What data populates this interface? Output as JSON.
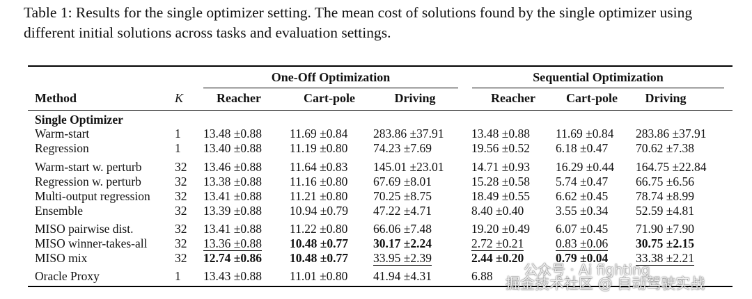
{
  "caption": "Table 1: Results for the single optimizer setting. The mean cost of solutions found by the single optimizer using different initial solutions across tasks and evaluation settings.",
  "groups": [
    "One-Off Optimization",
    "Sequential Optimization"
  ],
  "headers": [
    "Method",
    "K",
    "Reacher",
    "Cart-pole",
    "Driving",
    "Reacher",
    "Cart-pole",
    "Driving"
  ],
  "section": "Single Optimizer",
  "rows": [
    {
      "method": "Warm-start",
      "k": "1",
      "vals": [
        "13.48 ±0.88",
        "11.69 ±0.84",
        "283.86 ±37.91",
        "13.48 ±0.88",
        "11.69 ±0.84",
        "283.86 ±37.91"
      ],
      "bold": [],
      "under": []
    },
    {
      "method": "Regression",
      "k": "1",
      "vals": [
        "13.40 ±0.88",
        "11.19 ±0.80",
        "74.23 ±7.69",
        "19.56 ±0.52",
        "6.18 ±0.47",
        "70.62 ±7.38"
      ],
      "bold": [],
      "under": []
    },
    {
      "method": "Warm-start w. perturb",
      "k": "32",
      "vals": [
        "13.46 ±0.88",
        "11.64 ±0.83",
        "145.01 ±23.01",
        "14.71 ±0.93",
        "16.29 ±0.44",
        "164.75 ±22.84"
      ],
      "bold": [],
      "under": []
    },
    {
      "method": "Regression w. perturb",
      "k": "32",
      "vals": [
        "13.38 ±0.88",
        "11.16 ±0.80",
        "67.69 ±8.01",
        "15.28 ±0.58",
        "5.74 ±0.47",
        "66.75 ±6.56"
      ],
      "bold": [],
      "under": []
    },
    {
      "method": "Multi-output regression",
      "k": "32",
      "vals": [
        "13.41 ±0.88",
        "11.21 ±0.80",
        "70.25 ±8.75",
        "18.49 ±0.55",
        "6.62 ±0.45",
        "78.74 ±8.99"
      ],
      "bold": [],
      "under": []
    },
    {
      "method": "Ensemble",
      "k": "32",
      "vals": [
        "13.39 ±0.88",
        "10.94 ±0.79",
        "47.22 ±4.71",
        "8.40 ±0.40",
        "3.55 ±0.34",
        "52.59 ±4.81"
      ],
      "bold": [],
      "under": []
    },
    {
      "method": "MISO pairwise dist.",
      "k": "32",
      "vals": [
        "13.41 ±0.88",
        "11.22 ±0.80",
        "66.06 ±7.48",
        "19.20 ±0.49",
        "6.07 ±0.45",
        "71.90 ±7.90"
      ],
      "bold": [],
      "under": []
    },
    {
      "method": "MISO winner-takes-all",
      "k": "32",
      "vals": [
        "13.36 ±0.88",
        "10.48 ±0.77",
        "30.17 ±2.24",
        "2.72 ±0.21",
        "0.83 ±0.06",
        "30.75 ±2.15"
      ],
      "bold": [
        1,
        2,
        5
      ],
      "under": [
        0,
        3,
        4
      ]
    },
    {
      "method": "MISO mix",
      "k": "32",
      "vals": [
        "12.74 ±0.86",
        "10.48 ±0.77",
        "33.95 ±2.39",
        "2.44 ±0.20",
        "0.79 ±0.04",
        "33.38 ±2.21"
      ],
      "bold": [
        0,
        1,
        3,
        4
      ],
      "under": [
        2,
        5
      ]
    },
    {
      "method": "Oracle Proxy",
      "k": "1",
      "vals": [
        "13.43 ±0.88",
        "11.01 ±0.80",
        "41.94 ±4.31",
        "6.88",
        "",
        ""
      ],
      "bold": [],
      "under": []
    }
  ],
  "watermark": {
    "line1": "公众号 · Ai fighting",
    "line2": "掘金技术社区 @ 自动驾驶实战"
  }
}
